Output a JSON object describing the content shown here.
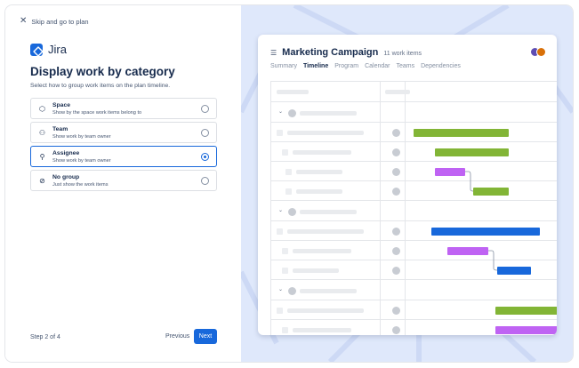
{
  "left": {
    "skip_label": "Skip and go to plan",
    "brand": "Jira",
    "title": "Display work by category",
    "subtitle": "Select how to group work items on the plan timeline.",
    "options": [
      {
        "title": "Space",
        "desc": "Show by the space work items belong to",
        "icon": "space-icon",
        "selected": false
      },
      {
        "title": "Team",
        "desc": "Show work by team owner",
        "icon": "team-icon",
        "selected": false
      },
      {
        "title": "Assignee",
        "desc": "Show work by team owner",
        "icon": "person-icon",
        "selected": true
      },
      {
        "title": "No group",
        "desc": "Just show the work items",
        "icon": "no-group-icon",
        "selected": false
      }
    ],
    "step": "Step 2 of 4",
    "previous": "Previous",
    "next": "Next"
  },
  "preview": {
    "title": "Marketing Campaign",
    "count": "11 work items",
    "tabs": [
      "Summary",
      "Timeline",
      "Program",
      "Calendar",
      "Teams",
      "Dependencies"
    ],
    "active_tab": "Timeline",
    "bar_colors": {
      "green": "#82b536",
      "purple": "#bf63f3",
      "blue": "#1868db"
    }
  },
  "colors": {
    "accent": "#1868db",
    "background_right": "#dfe8fb"
  }
}
